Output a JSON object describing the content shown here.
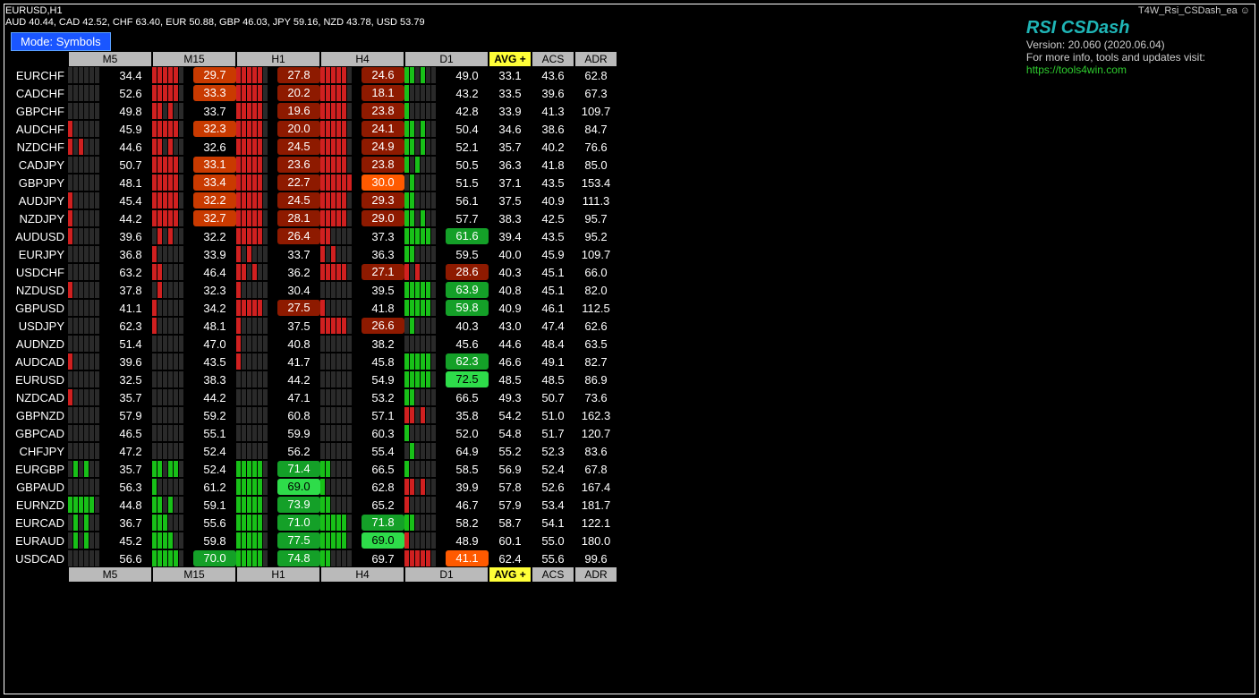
{
  "header": {
    "title": "EURUSD,H1",
    "subtitle": "AUD 40.44, CAD 42.52, CHF 63.40, EUR 50.88, GBP 46.03, JPY 59.16, NZD 43.78, USD 53.79",
    "ea_tag": "T4W_Rsi_CSDash_ea ☺",
    "brand_name": "RSI CSDash",
    "brand_version": "Version: 20.060 (2020.06.04)",
    "brand_info": "For more info, tools and updates visit:",
    "brand_url": "https://tools4win.com",
    "mode_btn": "Mode: Symbols"
  },
  "columns": {
    "tf": [
      "M5",
      "M15",
      "H1",
      "H4",
      "D1"
    ],
    "extra": [
      "AVG +",
      "ACS",
      "ADR"
    ]
  },
  "barSegs": 6,
  "rows": [
    {
      "sym": "EURCHF",
      "tf": [
        {
          "b": "......",
          "v": "34.4"
        },
        {
          "b": "rrrrr.",
          "v": "29.7",
          "c": "r2"
        },
        {
          "b": "rrrrr.",
          "v": "27.8",
          "c": "r1"
        },
        {
          "b": "rrrrr.",
          "v": "24.6",
          "c": "r1"
        },
        {
          "b": "gg.g..",
          "v": "49.0"
        }
      ],
      "avg": "33.1",
      "acs": "43.6",
      "adr": "62.8"
    },
    {
      "sym": "CADCHF",
      "tf": [
        {
          "b": "......",
          "v": "52.6"
        },
        {
          "b": "rrrrr.",
          "v": "33.3",
          "c": "r2"
        },
        {
          "b": "rrrrr.",
          "v": "20.2",
          "c": "r1"
        },
        {
          "b": "rrrrr.",
          "v": "18.1",
          "c": "r1"
        },
        {
          "b": "g.....",
          "v": "43.2"
        }
      ],
      "avg": "33.5",
      "acs": "39.6",
      "adr": "67.3"
    },
    {
      "sym": "GBPCHF",
      "tf": [
        {
          "b": "......",
          "v": "49.8"
        },
        {
          "b": "rr.r..",
          "v": "33.7"
        },
        {
          "b": "rrrrr.",
          "v": "19.6",
          "c": "r1"
        },
        {
          "b": "rrrrr.",
          "v": "23.8",
          "c": "r1"
        },
        {
          "b": "g.....",
          "v": "42.8"
        }
      ],
      "avg": "33.9",
      "acs": "41.3",
      "adr": "109.7"
    },
    {
      "sym": "AUDCHF",
      "tf": [
        {
          "b": "r.....",
          "v": "45.9"
        },
        {
          "b": "rrrrr.",
          "v": "32.3",
          "c": "r2"
        },
        {
          "b": "rrrrr.",
          "v": "20.0",
          "c": "r1"
        },
        {
          "b": "rrrrr.",
          "v": "24.1",
          "c": "r1"
        },
        {
          "b": "gg.g..",
          "v": "50.4"
        }
      ],
      "avg": "34.6",
      "acs": "38.6",
      "adr": "84.7"
    },
    {
      "sym": "NZDCHF",
      "tf": [
        {
          "b": "r.r...",
          "v": "44.6"
        },
        {
          "b": "rr.r..",
          "v": "32.6"
        },
        {
          "b": "rrrrr.",
          "v": "24.5",
          "c": "r1"
        },
        {
          "b": "rrrrr.",
          "v": "24.9",
          "c": "r1"
        },
        {
          "b": "gg.g..",
          "v": "52.1"
        }
      ],
      "avg": "35.7",
      "acs": "40.2",
      "adr": "76.6"
    },
    {
      "sym": "CADJPY",
      "tf": [
        {
          "b": "......",
          "v": "50.7"
        },
        {
          "b": "rrrrr.",
          "v": "33.1",
          "c": "r2"
        },
        {
          "b": "rrrrr.",
          "v": "23.6",
          "c": "r1"
        },
        {
          "b": "rrrrr.",
          "v": "23.8",
          "c": "r1"
        },
        {
          "b": "g.g...",
          "v": "50.5"
        }
      ],
      "avg": "36.3",
      "acs": "41.8",
      "adr": "85.0"
    },
    {
      "sym": "GBPJPY",
      "tf": [
        {
          "b": "......",
          "v": "48.1"
        },
        {
          "b": "rrrrr.",
          "v": "33.4",
          "c": "r2"
        },
        {
          "b": "rrrrr.",
          "v": "22.7",
          "c": "r1"
        },
        {
          "b": "rrrrrr",
          "v": "30.0",
          "c": "r3"
        },
        {
          "b": ".g....",
          "v": "51.5"
        }
      ],
      "avg": "37.1",
      "acs": "43.5",
      "adr": "153.4"
    },
    {
      "sym": "AUDJPY",
      "tf": [
        {
          "b": "r.....",
          "v": "45.4"
        },
        {
          "b": "rrrrr.",
          "v": "32.2",
          "c": "r2"
        },
        {
          "b": "rrrrr.",
          "v": "24.5",
          "c": "r1"
        },
        {
          "b": "rrrrr.",
          "v": "29.3",
          "c": "r1"
        },
        {
          "b": "gg....",
          "v": "56.1"
        }
      ],
      "avg": "37.5",
      "acs": "40.9",
      "adr": "111.3"
    },
    {
      "sym": "NZDJPY",
      "tf": [
        {
          "b": "r.....",
          "v": "44.2"
        },
        {
          "b": "rrrrr.",
          "v": "32.7",
          "c": "r2"
        },
        {
          "b": "rrrrr.",
          "v": "28.1",
          "c": "r1"
        },
        {
          "b": "rrrrr.",
          "v": "29.0",
          "c": "r1"
        },
        {
          "b": "gg.g..",
          "v": "57.7"
        }
      ],
      "avg": "38.3",
      "acs": "42.5",
      "adr": "95.7"
    },
    {
      "sym": "AUDUSD",
      "tf": [
        {
          "b": "r.....",
          "v": "39.6"
        },
        {
          "b": ".r.r..",
          "v": "32.2"
        },
        {
          "b": "rrrrr.",
          "v": "26.4",
          "c": "r1"
        },
        {
          "b": "rr....",
          "v": "37.3"
        },
        {
          "b": "ggggg.",
          "v": "61.6",
          "c": "g2"
        }
      ],
      "avg": "39.4",
      "acs": "43.5",
      "adr": "95.2"
    },
    {
      "sym": "EURJPY",
      "tf": [
        {
          "b": "......",
          "v": "36.8"
        },
        {
          "b": "r.....",
          "v": "33.9"
        },
        {
          "b": "r.r...",
          "v": "33.7"
        },
        {
          "b": "r.r...",
          "v": "36.3"
        },
        {
          "b": "gg....",
          "v": "59.5"
        }
      ],
      "avg": "40.0",
      "acs": "45.9",
      "adr": "109.7"
    },
    {
      "sym": "USDCHF",
      "tf": [
        {
          "b": "......",
          "v": "63.2"
        },
        {
          "b": "rr....",
          "v": "46.4"
        },
        {
          "b": "rr.r..",
          "v": "36.2"
        },
        {
          "b": "rrrrr.",
          "v": "27.1",
          "c": "r1"
        },
        {
          "b": "r.r...",
          "v": "28.6",
          "c": "r1"
        }
      ],
      "avg": "40.3",
      "acs": "45.1",
      "adr": "66.0"
    },
    {
      "sym": "NZDUSD",
      "tf": [
        {
          "b": "r.....",
          "v": "37.8"
        },
        {
          "b": ".r....",
          "v": "32.3"
        },
        {
          "b": "r.....",
          "v": "30.4"
        },
        {
          "b": "......",
          "v": "39.5"
        },
        {
          "b": "ggggg.",
          "v": "63.9",
          "c": "g2"
        }
      ],
      "avg": "40.8",
      "acs": "45.1",
      "adr": "82.0"
    },
    {
      "sym": "GBPUSD",
      "tf": [
        {
          "b": "......",
          "v": "41.1"
        },
        {
          "b": "r.....",
          "v": "34.2"
        },
        {
          "b": "rrrrr.",
          "v": "27.5",
          "c": "r1"
        },
        {
          "b": "r.....",
          "v": "41.8"
        },
        {
          "b": "ggggg.",
          "v": "59.8",
          "c": "g2"
        }
      ],
      "avg": "40.9",
      "acs": "46.1",
      "adr": "112.5"
    },
    {
      "sym": "USDJPY",
      "tf": [
        {
          "b": "......",
          "v": "62.3"
        },
        {
          "b": "r.....",
          "v": "48.1"
        },
        {
          "b": "r.....",
          "v": "37.5"
        },
        {
          "b": "rrrrr.",
          "v": "26.6",
          "c": "r1"
        },
        {
          "b": ".g....",
          "v": "40.3"
        }
      ],
      "avg": "43.0",
      "acs": "47.4",
      "adr": "62.6"
    },
    {
      "sym": "AUDNZD",
      "tf": [
        {
          "b": "......",
          "v": "51.4"
        },
        {
          "b": "......",
          "v": "47.0"
        },
        {
          "b": "r.....",
          "v": "40.8"
        },
        {
          "b": "......",
          "v": "38.2"
        },
        {
          "b": "......",
          "v": "45.6"
        }
      ],
      "avg": "44.6",
      "acs": "48.4",
      "adr": "63.5"
    },
    {
      "sym": "AUDCAD",
      "tf": [
        {
          "b": "r.....",
          "v": "39.6"
        },
        {
          "b": "......",
          "v": "43.5"
        },
        {
          "b": "r.....",
          "v": "41.7"
        },
        {
          "b": "......",
          "v": "45.8"
        },
        {
          "b": "ggggg.",
          "v": "62.3",
          "c": "g2"
        }
      ],
      "avg": "46.6",
      "acs": "49.1",
      "adr": "82.7"
    },
    {
      "sym": "EURUSD",
      "tf": [
        {
          "b": "......",
          "v": "32.5"
        },
        {
          "b": "......",
          "v": "38.3"
        },
        {
          "b": "......",
          "v": "44.2"
        },
        {
          "b": "......",
          "v": "54.9"
        },
        {
          "b": "ggggg.",
          "v": "72.5",
          "c": "g3"
        }
      ],
      "avg": "48.5",
      "acs": "48.5",
      "adr": "86.9"
    },
    {
      "sym": "NZDCAD",
      "tf": [
        {
          "b": "r.....",
          "v": "35.7"
        },
        {
          "b": "......",
          "v": "44.2"
        },
        {
          "b": "......",
          "v": "47.1"
        },
        {
          "b": "......",
          "v": "53.2"
        },
        {
          "b": "gg....",
          "v": "66.5"
        }
      ],
      "avg": "49.3",
      "acs": "50.7",
      "adr": "73.6"
    },
    {
      "sym": "GBPNZD",
      "tf": [
        {
          "b": "......",
          "v": "57.9"
        },
        {
          "b": "......",
          "v": "59.2"
        },
        {
          "b": "......",
          "v": "60.8"
        },
        {
          "b": "......",
          "v": "57.1"
        },
        {
          "b": "rr.r..",
          "v": "35.8"
        }
      ],
      "avg": "54.2",
      "acs": "51.0",
      "adr": "162.3"
    },
    {
      "sym": "GBPCAD",
      "tf": [
        {
          "b": "......",
          "v": "46.5"
        },
        {
          "b": "......",
          "v": "55.1"
        },
        {
          "b": "......",
          "v": "59.9"
        },
        {
          "b": "......",
          "v": "60.3"
        },
        {
          "b": "g.....",
          "v": "52.0"
        }
      ],
      "avg": "54.8",
      "acs": "51.7",
      "adr": "120.7"
    },
    {
      "sym": "CHFJPY",
      "tf": [
        {
          "b": "......",
          "v": "47.2"
        },
        {
          "b": "......",
          "v": "52.4"
        },
        {
          "b": "......",
          "v": "56.2"
        },
        {
          "b": "......",
          "v": "55.4"
        },
        {
          "b": ".g....",
          "v": "64.9"
        }
      ],
      "avg": "55.2",
      "acs": "52.3",
      "adr": "83.6"
    },
    {
      "sym": "EURGBP",
      "tf": [
        {
          "b": ".g.g..",
          "v": "35.7"
        },
        {
          "b": "gg.gg.",
          "v": "52.4"
        },
        {
          "b": "ggggg.",
          "v": "71.4",
          "c": "g2"
        },
        {
          "b": "gg....",
          "v": "66.5"
        },
        {
          "b": "g.....",
          "v": "58.5"
        }
      ],
      "avg": "56.9",
      "acs": "52.4",
      "adr": "67.8"
    },
    {
      "sym": "GBPAUD",
      "tf": [
        {
          "b": "......",
          "v": "56.3"
        },
        {
          "b": "g.....",
          "v": "61.2"
        },
        {
          "b": "ggggg.",
          "v": "69.0",
          "c": "g3"
        },
        {
          "b": "g.....",
          "v": "62.8"
        },
        {
          "b": "rr.r..",
          "v": "39.9"
        }
      ],
      "avg": "57.8",
      "acs": "52.6",
      "adr": "167.4"
    },
    {
      "sym": "EURNZD",
      "tf": [
        {
          "b": "ggggg.",
          "v": "44.8"
        },
        {
          "b": "gg.g..",
          "v": "59.1"
        },
        {
          "b": "ggggg.",
          "v": "73.9",
          "c": "g2"
        },
        {
          "b": "gg....",
          "v": "65.2"
        },
        {
          "b": "r.....",
          "v": "46.7"
        }
      ],
      "avg": "57.9",
      "acs": "53.4",
      "adr": "181.7"
    },
    {
      "sym": "EURCAD",
      "tf": [
        {
          "b": ".g.g..",
          "v": "36.7"
        },
        {
          "b": "ggg...",
          "v": "55.6"
        },
        {
          "b": "ggggg.",
          "v": "71.0",
          "c": "g2"
        },
        {
          "b": "ggggg.",
          "v": "71.8",
          "c": "g2"
        },
        {
          "b": "gg....",
          "v": "58.2"
        }
      ],
      "avg": "58.7",
      "acs": "54.1",
      "adr": "122.1"
    },
    {
      "sym": "EURAUD",
      "tf": [
        {
          "b": ".g.g..",
          "v": "45.2"
        },
        {
          "b": "gggg..",
          "v": "59.8"
        },
        {
          "b": "ggggg.",
          "v": "77.5",
          "c": "g2"
        },
        {
          "b": "ggggg.",
          "v": "69.0",
          "c": "g3"
        },
        {
          "b": "r.....",
          "v": "48.9"
        }
      ],
      "avg": "60.1",
      "acs": "55.0",
      "adr": "180.0"
    },
    {
      "sym": "USDCAD",
      "tf": [
        {
          "b": "......",
          "v": "56.6"
        },
        {
          "b": "ggggg.",
          "v": "70.0",
          "c": "g2"
        },
        {
          "b": "ggggg.",
          "v": "74.8",
          "c": "g2"
        },
        {
          "b": "gg....",
          "v": "69.7"
        },
        {
          "b": "rrrrr.",
          "v": "41.1",
          "c": "r3"
        }
      ],
      "avg": "62.4",
      "acs": "55.6",
      "adr": "99.6"
    }
  ]
}
